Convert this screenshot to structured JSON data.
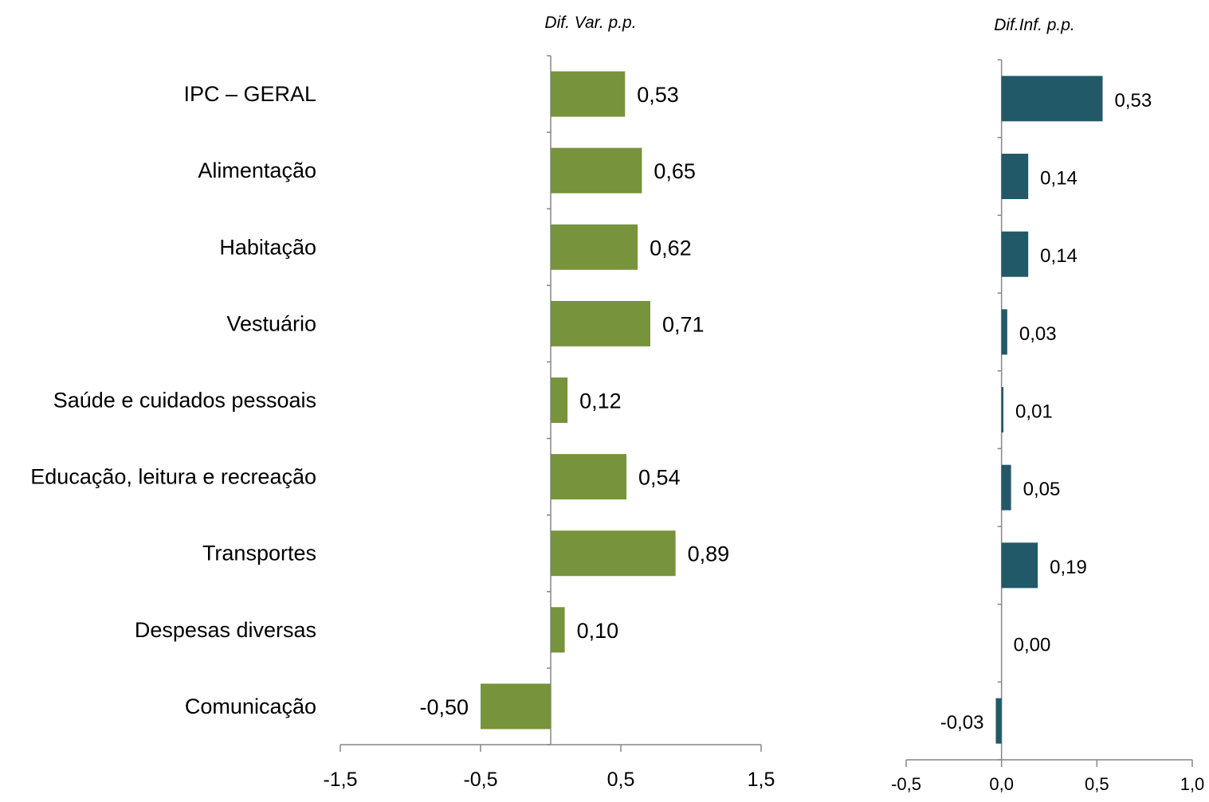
{
  "chart_data": [
    {
      "type": "bar",
      "orientation": "horizontal",
      "title": "Dif. Var. p.p.",
      "categories": [
        "IPC – GERAL",
        "Alimentação",
        "Habitação",
        "Vestuário",
        "Saúde e cuidados pessoais",
        "Educação, leitura e recreação",
        "Transportes",
        "Despesas diversas",
        "Comunicação"
      ],
      "values": [
        0.53,
        0.65,
        0.62,
        0.71,
        0.12,
        0.54,
        0.89,
        0.1,
        -0.5
      ],
      "value_labels": [
        "0,53",
        "0,65",
        "0,62",
        "0,71",
        "0,12",
        "0,54",
        "0,89",
        "0,10",
        "-0,50"
      ],
      "xlim": [
        -1.5,
        1.5
      ],
      "xticks": [
        -1.5,
        -0.5,
        0.5,
        1.5
      ],
      "xtick_labels": [
        "-1,5",
        "-0,5",
        "0,5",
        "1,5"
      ],
      "color": "#77933C",
      "grid": false
    },
    {
      "type": "bar",
      "orientation": "horizontal",
      "title": "Dif.Inf. p.p.",
      "categories": [
        "IPC – GERAL",
        "Alimentação",
        "Habitação",
        "Vestuário",
        "Saúde e cuidados pessoais",
        "Educação, leitura e recreação",
        "Transportes",
        "Despesas diversas",
        "Comunicação"
      ],
      "values": [
        0.53,
        0.14,
        0.14,
        0.03,
        0.01,
        0.05,
        0.19,
        0.0,
        -0.03
      ],
      "value_labels": [
        "0,53",
        "0,14",
        "0,14",
        "0,03",
        "0,01",
        "0,05",
        "0,19",
        "0,00",
        "-0,03"
      ],
      "xlim": [
        -0.5,
        1.0
      ],
      "xticks": [
        -0.5,
        0.0,
        0.5,
        1.0
      ],
      "xtick_labels": [
        "-0,5",
        "0,0",
        "0,5",
        "1,0"
      ],
      "color": "#215968",
      "grid": false
    }
  ]
}
